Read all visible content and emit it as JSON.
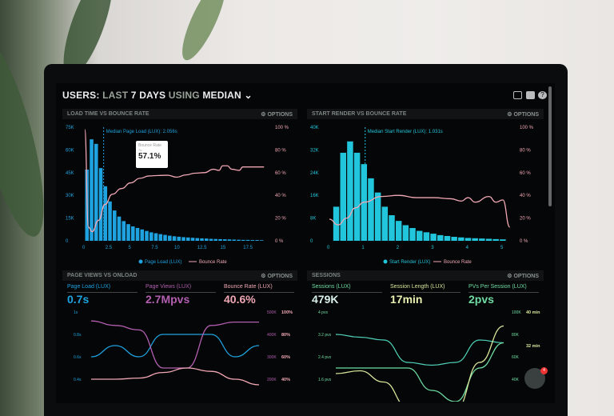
{
  "header": {
    "title_parts": [
      "USERS:",
      "LAST",
      "7 DAYS",
      "USING",
      "MEDIAN"
    ],
    "icons": [
      "monitor-icon",
      "share-icon",
      "help-icon"
    ]
  },
  "colors": {
    "blue": "#1fa3e0",
    "cyan": "#22c6dc",
    "pink": "#f0a7b5",
    "purple": "#b25fb0",
    "green": "#6fdca4",
    "yellow": "#d9e69a",
    "teal": "#4fd0b7"
  },
  "panels": [
    {
      "title": "LOAD TIME VS BOUNCE RATE",
      "options": "OPTIONS",
      "median_label": "Median Page Load (LUX): 2.056s",
      "tooltip": {
        "label": "Bounce Rate",
        "sub": "7s",
        "value": "57.1%"
      },
      "legend": [
        "Page Load (LUX)",
        "Bounce Rate"
      ]
    },
    {
      "title": "START RENDER VS BOUNCE RATE",
      "options": "OPTIONS",
      "median_label": "Median Start Render (LUX): 1.031s",
      "legend": [
        "Start Render (LUX)",
        "Bounce Rate"
      ]
    },
    {
      "title": "PAGE VIEWS VS ONLOAD",
      "options": "OPTIONS",
      "metrics": [
        {
          "label": "Page Load (LUX)",
          "value": "0.7s"
        },
        {
          "label": "Page Views (LUX)",
          "value": "2.7Mpvs"
        },
        {
          "label": "Bounce Rate (LUX)",
          "value": "40.6%"
        }
      ]
    },
    {
      "title": "SESSIONS",
      "options": "OPTIONS",
      "metrics": [
        {
          "label": "Sessions (LUX)",
          "value": "479K"
        },
        {
          "label": "Session Length (LUX)",
          "value": "17min"
        },
        {
          "label": "PVs Per Session (LUX)",
          "value": "2pvs"
        }
      ]
    }
  ],
  "chat_badge": "4",
  "chart_data": [
    {
      "type": "bar",
      "title": "LOAD TIME VS BOUNCE RATE",
      "x_ticks": [
        "0",
        "2.5",
        "5",
        "7.5",
        "10",
        "12.5",
        "15",
        "17.5"
      ],
      "xlim": [
        0,
        20
      ],
      "y_ticks": [
        "0",
        "15K",
        "30K",
        "45K",
        "60K",
        "75K"
      ],
      "ylim": [
        0,
        75
      ],
      "y2_ticks": [
        "0 %",
        "20 %",
        "40 %",
        "60 %",
        "80 %",
        "100 %"
      ],
      "y2lim": [
        0,
        100
      ],
      "median": 2.056,
      "bar_width": 0.5,
      "bars": [
        47,
        67,
        64,
        48,
        36,
        26,
        20,
        16,
        13,
        11,
        9.5,
        8.5,
        7.5,
        6.5,
        5.6,
        5,
        4.4,
        3.9,
        3.4,
        3,
        2.7,
        2.4,
        2.2,
        2,
        1.8,
        1.6,
        1.5,
        1.3,
        1.2,
        1.1,
        1,
        0.9,
        0.8,
        0.7,
        0.6,
        0.6,
        0.5,
        0.5,
        0.4
      ],
      "line": [
        [
          0,
          98
        ],
        [
          0.4,
          12
        ],
        [
          0.8,
          8
        ],
        [
          1.5,
          18
        ],
        [
          2.2,
          32
        ],
        [
          3,
          41
        ],
        [
          4,
          46
        ],
        [
          5,
          51
        ],
        [
          6,
          55
        ],
        [
          7,
          57.1
        ],
        [
          8,
          57.5
        ],
        [
          9,
          57.7
        ],
        [
          10,
          56
        ],
        [
          11,
          58
        ],
        [
          12,
          59.5
        ],
        [
          13,
          60
        ],
        [
          14,
          63
        ],
        [
          14.6,
          62
        ],
        [
          15,
          66
        ],
        [
          15.5,
          66
        ],
        [
          16,
          63
        ],
        [
          16.8,
          62
        ],
        [
          17.2,
          65
        ],
        [
          18,
          65
        ],
        [
          19.5,
          65
        ]
      ]
    },
    {
      "type": "bar",
      "title": "START RENDER VS BOUNCE RATE",
      "x_ticks": [
        "0",
        "1",
        "2",
        "3",
        "4",
        "5"
      ],
      "xlim": [
        0,
        5.3
      ],
      "y_ticks": [
        "0",
        "8K",
        "16K",
        "24K",
        "32K",
        "40K"
      ],
      "ylim": [
        0,
        40
      ],
      "y2_ticks": [
        "0 %",
        "20 %",
        "40 %",
        "60 %",
        "80 %",
        "100 %"
      ],
      "y2lim": [
        0,
        100
      ],
      "median": 1.031,
      "bar_width": 0.2,
      "bars": [
        12,
        31,
        35,
        31,
        27,
        22,
        17,
        12,
        9,
        7,
        5.5,
        4.5,
        3.5,
        3,
        2.5,
        2,
        1.7,
        1.4,
        1.2,
        1,
        0.9,
        0.8,
        0.7,
        0.6,
        0.5
      ],
      "line": [
        [
          0,
          19
        ],
        [
          0.25,
          14
        ],
        [
          0.5,
          20
        ],
        [
          0.75,
          29
        ],
        [
          1,
          34
        ],
        [
          1.5,
          39
        ],
        [
          2,
          40
        ],
        [
          2.5,
          38
        ],
        [
          3,
          38
        ],
        [
          3.5,
          37
        ],
        [
          3.8,
          35
        ],
        [
          4,
          38
        ],
        [
          4.2,
          34
        ],
        [
          4.6,
          39
        ],
        [
          4.8,
          34
        ],
        [
          5,
          36
        ],
        [
          5.2,
          12
        ]
      ]
    },
    {
      "type": "line",
      "title": "PAGE VIEWS VS ONLOAD",
      "y_ticks": [
        "0.4s",
        "0.6s",
        "0.8s",
        "1s"
      ],
      "ylim": [
        0.3,
        1
      ],
      "y2_ticks": [
        "200K",
        "300K",
        "400K",
        "500K"
      ],
      "y3_ticks": [
        "40%",
        "60%",
        "80%",
        "100%"
      ],
      "series": [
        {
          "name": "Page Load (LUX)",
          "color": "#1fa3e0",
          "values": [
            0.6,
            0.7,
            0.6,
            0.8,
            0.8,
            0.8,
            0.6,
            0.7
          ]
        },
        {
          "name": "Page Views (LUX)",
          "color": "#b25fb0",
          "values": [
            0.92,
            0.88,
            0.84,
            0.5,
            0.5,
            0.88,
            0.91,
            0.91
          ]
        },
        {
          "name": "Bounce Rate (LUX)",
          "color": "#f0a7b5",
          "values": [
            0.4,
            0.4,
            0.41,
            0.46,
            0.5,
            0.47,
            0.4,
            0.35
          ]
        }
      ]
    },
    {
      "type": "line",
      "title": "SESSIONS",
      "y_ticks": [
        "1.6 pvs",
        "2.4 pvs",
        "3.2 pvs",
        "4 pvs"
      ],
      "ylim": [
        1.2,
        4
      ],
      "y2_ticks": [
        "40K",
        "60K",
        "80K",
        "100K"
      ],
      "y3_ticks": [
        "24 min",
        "32 min",
        "40 min"
      ],
      "series": [
        {
          "name": "Sessions (LUX)",
          "color": "#4fd0b7",
          "values": [
            3.2,
            3.1,
            3,
            2.2,
            2.1,
            2.2,
            3,
            2.9
          ]
        },
        {
          "name": "Session Length (LUX)",
          "color": "#6fdca4",
          "values": [
            2,
            2,
            2,
            2,
            1.2,
            0.8,
            2,
            2.9
          ]
        },
        {
          "name": "PVs Per Session (LUX)",
          "color": "#d9e69a",
          "values": [
            1.8,
            1.9,
            1.5,
            0.6,
            0.3,
            0.5,
            2.2,
            3.5
          ]
        }
      ]
    }
  ]
}
